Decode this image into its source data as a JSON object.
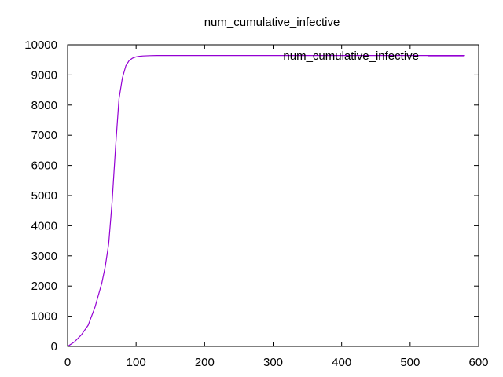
{
  "chart_data": {
    "type": "line",
    "title": "num_cumulative_infective",
    "xlabel": "",
    "ylabel": "",
    "xlim": [
      0,
      600
    ],
    "ylim": [
      0,
      10000
    ],
    "x_ticks": [
      0,
      100,
      200,
      300,
      400,
      500,
      600
    ],
    "y_ticks": [
      0,
      1000,
      2000,
      3000,
      4000,
      5000,
      6000,
      7000,
      8000,
      9000,
      10000
    ],
    "grid": false,
    "legend_position": "top-right",
    "series": [
      {
        "name": "num_cumulative_infective",
        "color": "#9400d3",
        "x": [
          0,
          10,
          20,
          30,
          40,
          50,
          55,
          60,
          65,
          70,
          75,
          80,
          85,
          90,
          95,
          100,
          105,
          110,
          120,
          130,
          150,
          200,
          300,
          400,
          500,
          580
        ],
        "y": [
          0,
          150,
          380,
          700,
          1300,
          2100,
          2650,
          3400,
          4800,
          6600,
          8200,
          8900,
          9300,
          9480,
          9560,
          9600,
          9620,
          9630,
          9640,
          9645,
          9645,
          9645,
          9645,
          9645,
          9645,
          9645
        ]
      }
    ]
  }
}
